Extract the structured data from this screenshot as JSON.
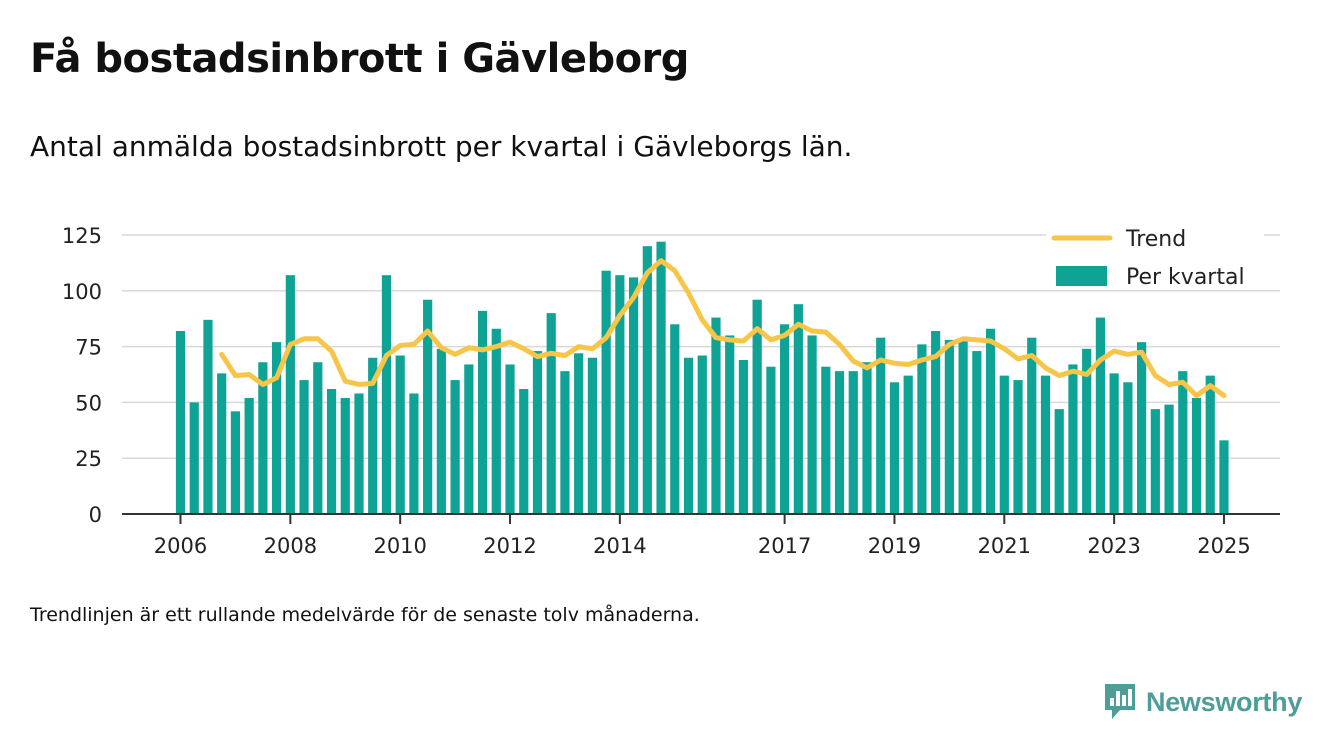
{
  "title": "Få bostadsinbrott i Gävleborg",
  "subtitle": "Antal anmälda bostadsinbrott per kvartal i Gävleborgs län.",
  "footnote": "Trendlinjen är ett rullande medelvärde för de senaste tolv månaderna.",
  "brand": {
    "name": "Newsworthy",
    "color": "#4d9e99"
  },
  "chart_data": {
    "type": "bar",
    "title": "Få bostadsinbrott i Gävleborg",
    "xlabel": "",
    "ylabel": "",
    "ylim": [
      0,
      125
    ],
    "yticks": [
      0,
      25,
      50,
      75,
      100,
      125
    ],
    "xticks": [
      "2006",
      "2008",
      "2010",
      "2012",
      "2014",
      "2017",
      "2019",
      "2021",
      "2023",
      "2025"
    ],
    "grid": true,
    "legend_position": "top-right",
    "colors": {
      "bars": "#0fa396",
      "trend": "#f7c548",
      "grid": "#d9d9d9",
      "axis": "#333333"
    },
    "legend": [
      "Trend",
      "Per kvartal"
    ],
    "series": [
      {
        "name": "Per kvartal",
        "kind": "bar",
        "values": [
          82,
          50,
          87,
          63,
          46,
          52,
          68,
          77,
          107,
          60,
          68,
          56,
          52,
          54,
          70,
          107,
          71,
          54,
          96,
          74,
          60,
          67,
          91,
          83,
          67,
          56,
          73,
          90,
          64,
          72,
          70,
          109,
          107,
          106,
          120,
          122,
          85,
          70,
          71,
          88,
          80,
          69,
          96,
          66,
          85,
          94,
          80,
          66,
          64,
          64,
          68,
          79,
          59,
          62,
          76,
          82,
          78,
          78,
          73,
          83,
          62,
          60,
          79,
          62,
          47,
          67,
          74,
          88,
          63,
          59,
          77,
          47,
          49,
          64,
          52,
          62,
          33
        ]
      },
      {
        "name": "Trend",
        "kind": "line",
        "values": [
          null,
          null,
          null,
          71.5,
          62,
          62.5,
          58,
          61,
          76,
          78.5,
          78.5,
          73,
          59.5,
          58,
          58.5,
          71,
          75.5,
          76,
          82,
          74.5,
          71.5,
          74.5,
          73.5,
          75,
          77,
          74,
          70.5,
          72,
          71,
          75,
          74,
          79,
          89,
          97,
          108,
          113.5,
          109,
          99,
          87,
          79,
          78,
          77.5,
          83,
          78,
          80,
          85,
          82,
          81.5,
          76,
          68.5,
          65.5,
          69,
          67.5,
          67,
          69,
          70.5,
          76,
          78.5,
          78,
          77.5,
          74,
          69.5,
          71,
          65.5,
          62,
          64,
          62.5,
          69,
          73,
          71.5,
          72.5,
          62,
          58,
          59,
          53,
          57.5,
          53
        ]
      }
    ]
  }
}
